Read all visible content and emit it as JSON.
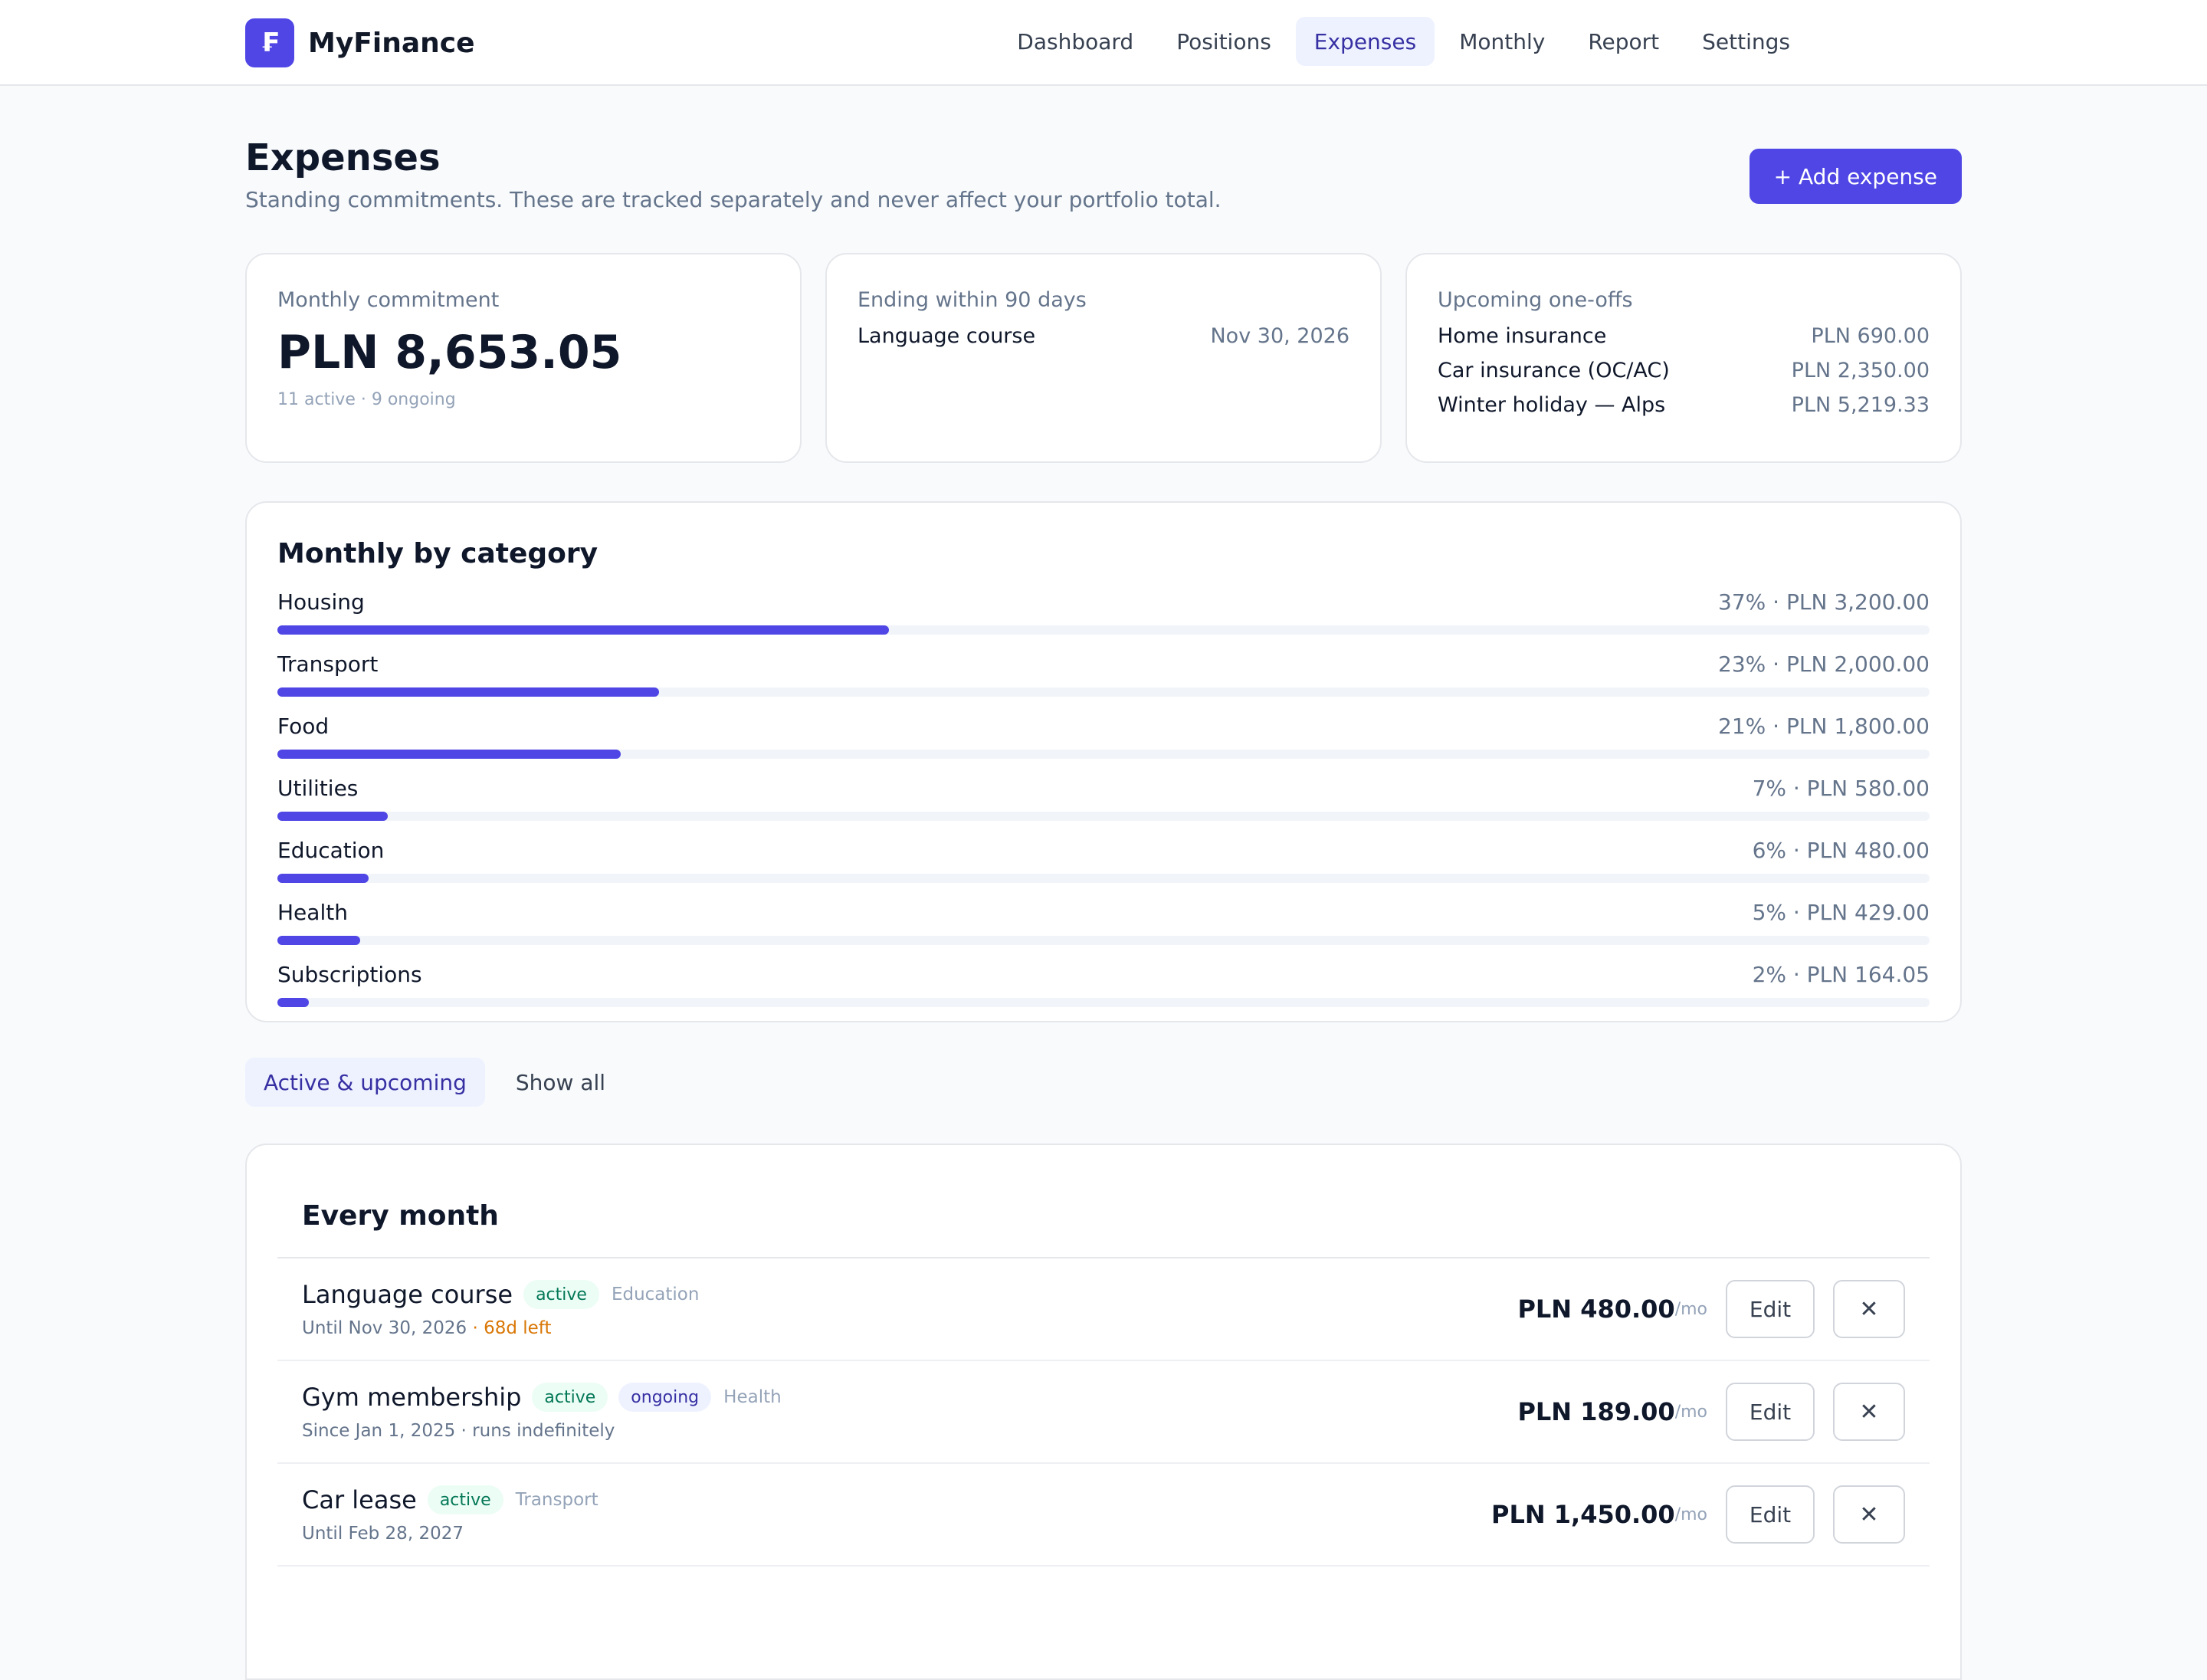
{
  "app": {
    "name": "MyFinance",
    "logo_glyph": "₣",
    "accent": "#4f46e5"
  },
  "nav": [
    {
      "label": "Dashboard",
      "active": false
    },
    {
      "label": "Positions",
      "active": false
    },
    {
      "label": "Expenses",
      "active": true
    },
    {
      "label": "Monthly",
      "active": false
    },
    {
      "label": "Report",
      "active": false
    },
    {
      "label": "Settings",
      "active": false
    }
  ],
  "page": {
    "title": "Expenses",
    "subtitle": "Standing commitments. These are tracked separately and never affect your portfolio total.",
    "add_button": "+ Add expense"
  },
  "stats": {
    "monthly": {
      "label": "Monthly commitment",
      "amount": "PLN 8,653.05",
      "sub": "11 active · 9 ongoing"
    },
    "ending": {
      "label": "Ending within 90 days",
      "items": [
        {
          "name": "Language course",
          "value": "Nov 30, 2026"
        }
      ]
    },
    "oneoffs": {
      "label": "Upcoming one-offs",
      "items": [
        {
          "name": "Home insurance",
          "value": "PLN 690.00"
        },
        {
          "name": "Car insurance (OC/AC)",
          "value": "PLN 2,350.00"
        },
        {
          "name": "Winter holiday — Alps",
          "value": "PLN 5,219.33"
        }
      ]
    }
  },
  "categories": {
    "title": "Monthly by category",
    "items": [
      {
        "name": "Housing",
        "label": "37% · PLN 3,200.00",
        "fraction": 0.37
      },
      {
        "name": "Transport",
        "label": "23% · PLN 2,000.00",
        "fraction": 0.231
      },
      {
        "name": "Food",
        "label": "21% · PLN 1,800.00",
        "fraction": 0.208
      },
      {
        "name": "Utilities",
        "label": "7% · PLN 580.00",
        "fraction": 0.067
      },
      {
        "name": "Education",
        "label": "6% · PLN 480.00",
        "fraction": 0.055
      },
      {
        "name": "Health",
        "label": "5% · PLN 429.00",
        "fraction": 0.05
      },
      {
        "name": "Subscriptions",
        "label": "2% · PLN 164.05",
        "fraction": 0.019
      }
    ]
  },
  "filters": [
    {
      "label": "Active & upcoming",
      "active": true
    },
    {
      "label": "Show all",
      "active": false
    }
  ],
  "list": {
    "title": "Every month",
    "edit_label": "Edit",
    "delete_glyph": "✕",
    "per_label": "/mo",
    "rows": [
      {
        "name": "Language course",
        "badges": [
          "active"
        ],
        "category": "Education",
        "sub": "Until Nov 30, 2026",
        "sub_extra": "· 68d left",
        "amount": "PLN 480.00"
      },
      {
        "name": "Gym membership",
        "badges": [
          "active",
          "ongoing"
        ],
        "category": "Health",
        "sub": "Since Jan 1, 2025 · runs indefinitely",
        "sub_extra": "",
        "amount": "PLN 189.00"
      },
      {
        "name": "Car lease",
        "badges": [
          "active"
        ],
        "category": "Transport",
        "sub": "Until Feb 28, 2027",
        "sub_extra": "",
        "amount": "PLN 1,450.00"
      }
    ]
  }
}
